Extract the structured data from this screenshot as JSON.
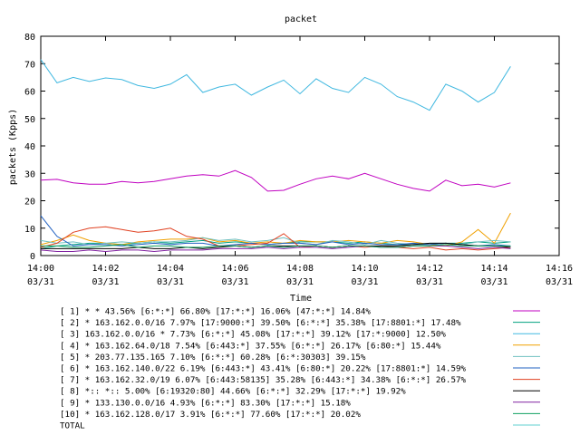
{
  "chart_data": {
    "type": "line",
    "title": "packet",
    "xlabel": "Time",
    "ylabel": "packets (Kpps)",
    "ylim": [
      0,
      80
    ],
    "xlim": [
      "14:00",
      "14:16"
    ],
    "y_ticks": [
      "0",
      "10",
      "20",
      "30",
      "40",
      "50",
      "60",
      "70",
      "80"
    ],
    "x_ticks": [
      {
        "time": "14:00",
        "date": "03/31"
      },
      {
        "time": "14:02",
        "date": "03/31"
      },
      {
        "time": "14:04",
        "date": "03/31"
      },
      {
        "time": "14:06",
        "date": "03/31"
      },
      {
        "time": "14:08",
        "date": "03/31"
      },
      {
        "time": "14:10",
        "date": "03/31"
      },
      {
        "time": "14:12",
        "date": "03/31"
      },
      {
        "time": "14:14",
        "date": "03/31"
      },
      {
        "time": "14:16",
        "date": "03/31"
      }
    ],
    "grid": false,
    "legend_position": "bottom",
    "x": [
      "14:00:00",
      "14:00:30",
      "14:01:00",
      "14:01:30",
      "14:02:00",
      "14:02:30",
      "14:03:00",
      "14:03:30",
      "14:04:00",
      "14:04:30",
      "14:05:00",
      "14:05:30",
      "14:06:00",
      "14:06:30",
      "14:07:00",
      "14:07:30",
      "14:08:00",
      "14:08:30",
      "14:09:00",
      "14:09:30",
      "14:10:00",
      "14:10:30",
      "14:11:00",
      "14:11:30",
      "14:12:00",
      "14:12:30",
      "14:13:00",
      "14:13:30",
      "14:14:00",
      "14:14:30"
    ],
    "series": [
      {
        "name": "[ 1] * * 43.56%  [6:*:*] 66.80% [17:*:*] 16.06% [47:*:*] 14.84%",
        "color": "#c000c0",
        "values": [
          27.5,
          27.8,
          26.5,
          26.0,
          26.0,
          27.0,
          26.5,
          27.0,
          28.0,
          29.0,
          29.5,
          29.0,
          31.0,
          28.5,
          23.5,
          23.8,
          26.0,
          28.0,
          29.0,
          28.0,
          30.0,
          28.0,
          26.0,
          24.5,
          23.5,
          27.5,
          25.5,
          26.0,
          25.0,
          26.5
        ]
      },
      {
        "name": "[ 2] * 163.162.0.0/16 7.97%  [17:9000:*] 39.50% [6:*:*] 35.38% [17:8801:*] 17.48%",
        "color": "#00a080",
        "values": [
          2.5,
          3.5,
          4.0,
          4.5,
          4.5,
          4.0,
          4.5,
          5.0,
          4.5,
          5.0,
          5.5,
          4.5,
          5.0,
          4.5,
          4.0,
          4.5,
          5.0,
          5.0,
          5.0,
          4.5,
          5.0,
          4.5,
          4.0,
          4.0,
          4.0,
          4.5,
          4.5,
          5.0,
          4.5,
          5.0
        ]
      },
      {
        "name": "[ 3] 163.162.0.0/16 * 7.73%  [6:*:*] 45.08% [17:*:*] 39.12% [17:*:9000] 12.50%",
        "color": "#40b8e0",
        "values": [
          71.5,
          63.0,
          65.0,
          63.5,
          64.8,
          64.2,
          62.0,
          61.0,
          62.5,
          66.0,
          59.5,
          61.5,
          62.5,
          58.5,
          61.5,
          64.0,
          59.0,
          64.5,
          61.0,
          59.5,
          65.0,
          62.5,
          58.0,
          56.0,
          53.0,
          62.5,
          60.0,
          56.0,
          59.5,
          69.0
        ]
      },
      {
        "name": "[ 4] * 163.162.64.0/18 7.54%  [6:443:*] 37.55% [6:*:*] 26.17% [6:80:*] 15.44%",
        "color": "#f0a000",
        "values": [
          4.0,
          5.5,
          7.5,
          5.5,
          4.5,
          4.0,
          5.0,
          5.5,
          6.0,
          6.0,
          6.5,
          5.0,
          5.5,
          4.5,
          5.0,
          4.5,
          5.5,
          5.0,
          5.0,
          5.5,
          5.0,
          4.5,
          5.5,
          5.0,
          4.0,
          3.5,
          5.0,
          9.5,
          4.5,
          15.5
        ]
      },
      {
        "name": "[ 5] * 203.77.135.165 7.10%  [6:*:*] 60.28% [6:*:30303] 39.15%",
        "color": "#70c0c0",
        "values": [
          5.5,
          4.5,
          5.0,
          4.0,
          4.5,
          5.0,
          4.5,
          5.0,
          5.0,
          5.5,
          6.5,
          5.5,
          6.0,
          5.0,
          5.5,
          6.5,
          4.5,
          4.0,
          5.5,
          5.0,
          4.0,
          5.5,
          4.5,
          4.0,
          4.5,
          4.5,
          4.0,
          5.0,
          5.5,
          5.0
        ]
      },
      {
        "name": "[ 6] * 163.162.140.0/22 6.19%  [6:443:*] 43.41% [6:80:*] 20.22% [17:8801:*] 14.59%",
        "color": "#2060c0",
        "values": [
          14.5,
          7.0,
          3.5,
          4.0,
          4.0,
          3.5,
          4.0,
          4.5,
          4.0,
          4.5,
          4.5,
          3.5,
          4.0,
          4.5,
          4.0,
          4.5,
          4.5,
          4.0,
          5.0,
          4.0,
          4.5,
          4.0,
          4.0,
          4.5,
          4.0,
          4.5,
          4.0,
          3.5,
          4.0,
          3.5
        ]
      },
      {
        "name": "[ 7] * 163.162.32.0/19 6.07%  [6:443:58135] 35.28% [6:443:*] 34.38% [6:*:*] 26.57%",
        "color": "#e04020",
        "values": [
          3.0,
          4.5,
          8.5,
          10.0,
          10.5,
          9.5,
          8.5,
          9.0,
          10.0,
          7.0,
          6.0,
          3.5,
          3.5,
          4.0,
          4.5,
          8.0,
          3.0,
          3.5,
          3.0,
          3.5,
          3.0,
          3.5,
          3.0,
          2.5,
          3.0,
          2.0,
          2.5,
          2.0,
          2.5,
          3.0
        ]
      },
      {
        "name": "[ 8] *:: *:: 5.00%  [6:19320:80] 44.66% [6:*:*] 32.29% [17:*:*] 19.92%",
        "color": "#000000",
        "values": [
          2.5,
          2.5,
          2.5,
          2.5,
          2.5,
          2.5,
          3.0,
          2.5,
          2.5,
          3.0,
          2.5,
          3.0,
          3.5,
          3.0,
          3.5,
          3.5,
          3.5,
          3.5,
          3.0,
          3.5,
          3.5,
          3.5,
          3.5,
          4.0,
          4.5,
          4.5,
          4.0,
          3.5,
          3.5,
          3.0
        ]
      },
      {
        "name": "[ 9] * 133.130.0.0/16 4.93%  [6:*:*] 83.30% [17:*:*] 15.18%",
        "color": "#8020a0",
        "values": [
          2.0,
          1.5,
          1.5,
          2.0,
          1.5,
          2.0,
          2.0,
          1.5,
          2.0,
          2.0,
          2.0,
          2.5,
          2.5,
          2.5,
          3.0,
          2.5,
          3.0,
          3.0,
          2.5,
          3.0,
          3.5,
          3.0,
          3.0,
          3.5,
          3.5,
          3.5,
          3.0,
          2.5,
          3.0,
          2.5
        ]
      },
      {
        "name": "[10] * 163.162.128.0/17 3.91%  [6:*:*] 77.60% [17:*:*] 20.02%",
        "color": "#10a060",
        "values": [
          3.5,
          3.5,
          3.0,
          3.0,
          3.5,
          4.0,
          3.0,
          3.5,
          3.5,
          3.0,
          3.0,
          3.5,
          3.5,
          3.0,
          3.5,
          3.0,
          3.5,
          3.5,
          3.0,
          3.5,
          3.5,
          3.0,
          3.0,
          3.5,
          3.5,
          4.0,
          3.5,
          3.5,
          3.5,
          3.5
        ]
      },
      {
        "name": "TOTAL",
        "color": "#60d0d0",
        "values": null
      }
    ]
  }
}
